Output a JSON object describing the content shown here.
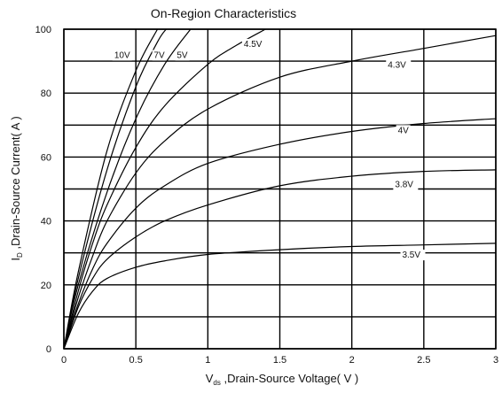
{
  "chart_data": {
    "type": "line",
    "title": "On-Region Characteristics",
    "xlabel": {
      "main": "V",
      "sub": "ds",
      "rest": " ,Drain-Source Voltage( V )"
    },
    "ylabel": {
      "main": "I",
      "sub": "D",
      "rest": " ,Drain-Source Current( A )"
    },
    "xlim": [
      0,
      3
    ],
    "ylim": [
      0,
      100
    ],
    "x_ticks": [
      "0",
      "0.5",
      "1",
      "1.5",
      "2",
      "2.5",
      "3"
    ],
    "y_ticks": [
      "0",
      "20",
      "40",
      "60",
      "80",
      "100"
    ],
    "grid": true,
    "series": [
      {
        "name": "3.5V",
        "x": [
          0,
          0.1,
          0.2,
          0.3,
          0.5,
          0.7,
          1.0,
          1.5,
          2.0,
          2.5,
          3.0
        ],
        "y": [
          0,
          11,
          18,
          22,
          25.5,
          27.5,
          29.5,
          31,
          32,
          32.5,
          33
        ]
      },
      {
        "name": "3.8V",
        "x": [
          0,
          0.1,
          0.2,
          0.3,
          0.5,
          0.7,
          1.0,
          1.5,
          2.0,
          2.5,
          3.0
        ],
        "y": [
          0,
          13,
          22,
          28,
          35,
          40,
          45,
          51,
          54,
          55.5,
          56
        ]
      },
      {
        "name": "4V",
        "x": [
          0,
          0.1,
          0.2,
          0.3,
          0.5,
          0.7,
          1.0,
          1.5,
          2.0,
          2.5,
          3.0
        ],
        "y": [
          0,
          14,
          25,
          33,
          44,
          51,
          58,
          64,
          68,
          70.5,
          72
        ]
      },
      {
        "name": "4.3V",
        "x": [
          0,
          0.1,
          0.2,
          0.3,
          0.5,
          0.7,
          1.0,
          1.5,
          2.0,
          2.5,
          3.0
        ],
        "y": [
          0,
          16,
          29,
          40,
          55,
          65,
          75,
          85,
          90,
          94,
          98
        ]
      },
      {
        "name": "4.5V",
        "x": [
          0,
          0.1,
          0.2,
          0.3,
          0.5,
          0.7,
          1.0,
          1.2,
          1.4
        ],
        "y": [
          0,
          18,
          33,
          45,
          63,
          76,
          89,
          95,
          100
        ]
      },
      {
        "name": "5V",
        "x": [
          0,
          0.1,
          0.3,
          0.5,
          0.7,
          0.88
        ],
        "y": [
          0,
          20,
          49,
          72,
          89,
          100
        ]
      },
      {
        "name": "7V",
        "x": [
          0,
          0.1,
          0.3,
          0.5,
          0.65,
          0.71
        ],
        "y": [
          0,
          22,
          56,
          82,
          96,
          100
        ]
      },
      {
        "name": "10V",
        "x": [
          0,
          0.1,
          0.3,
          0.5,
          0.65
        ],
        "y": [
          0,
          24,
          62,
          87,
          100
        ]
      }
    ]
  }
}
